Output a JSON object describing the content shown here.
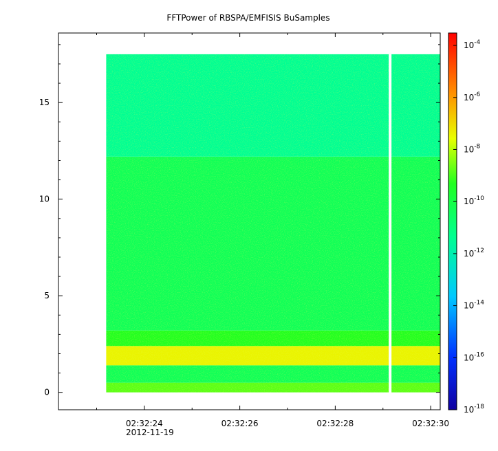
{
  "chart_data": {
    "type": "heatmap",
    "title": "FFTPower of RBSPA/EMFISIS  BuSamples",
    "xlabel": "",
    "ylabel": "",
    "x_tick_labels": [
      "02:32:24",
      "02:32:26",
      "02:32:28",
      "02:32:30"
    ],
    "x_tick_values_s": [
      24,
      26,
      28,
      30
    ],
    "x_date_label": "2012-11-19",
    "xlim_s": [
      22.2,
      30.2
    ],
    "data_xrange_s": [
      23.2,
      30.2
    ],
    "gap_at_s": 29.15,
    "y_tick_labels": [
      "0",
      "5",
      "10",
      "15"
    ],
    "y_tick_values": [
      0,
      5,
      10,
      15
    ],
    "ylim": [
      -0.9,
      18.6
    ],
    "data_yrange": [
      0,
      17.5
    ],
    "colorbar": {
      "scale": "log",
      "range": [
        1e-18,
        0.0003
      ],
      "tick_bases": [
        "10",
        "10",
        "10",
        "10",
        "10",
        "10",
        "10",
        "10"
      ],
      "tick_exponents": [
        "-4",
        "-6",
        "-8",
        "-10",
        "-12",
        "-14",
        "-16",
        "-18"
      ],
      "tick_log_values": [
        -4,
        -6,
        -8,
        -10,
        -12,
        -14,
        -16,
        -18
      ]
    },
    "power_profile": [
      {
        "y_from": 0.0,
        "y_to": 0.5,
        "log_power": -8.8
      },
      {
        "y_from": 0.5,
        "y_to": 1.4,
        "log_power": -10.3
      },
      {
        "y_from": 1.4,
        "y_to": 2.4,
        "log_power": -7.4
      },
      {
        "y_from": 2.4,
        "y_to": 3.2,
        "log_power": -9.3
      },
      {
        "y_from": 3.2,
        "y_to": 12.2,
        "log_power": -10.3
      },
      {
        "y_from": 12.2,
        "y_to": 17.5,
        "log_power": -11.4
      }
    ]
  }
}
